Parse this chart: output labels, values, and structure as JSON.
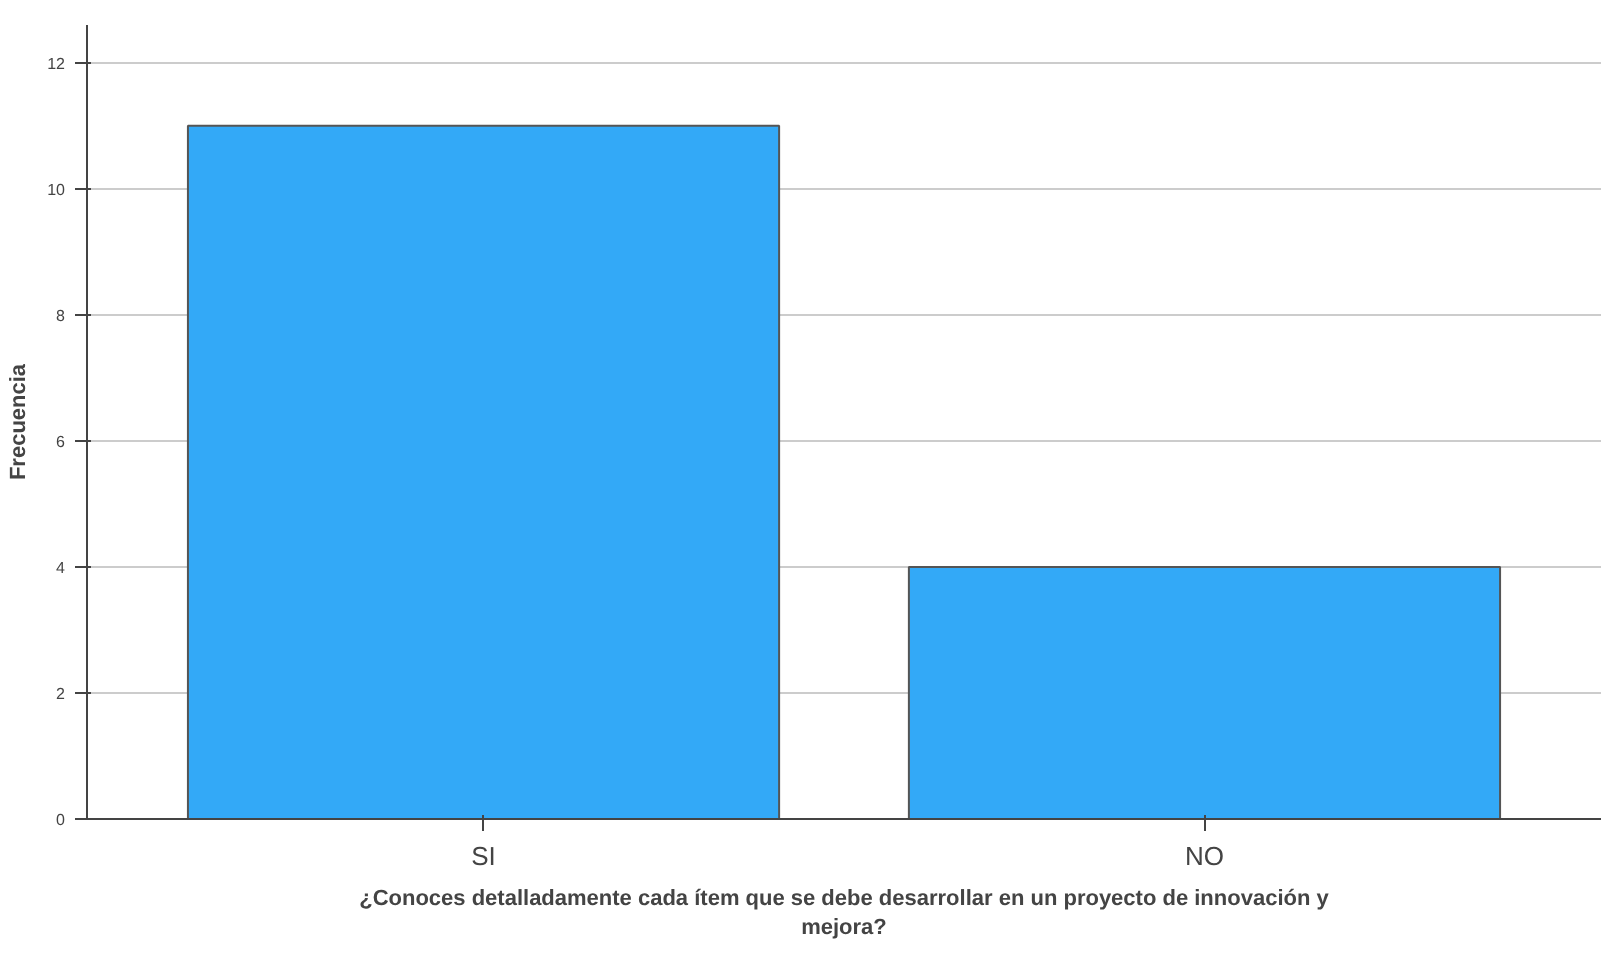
{
  "chart_data": {
    "type": "bar",
    "categories": [
      "SI",
      "NO"
    ],
    "values": [
      11,
      4
    ],
    "color": "#33a9f7",
    "xlabel": "¿Conoces detalladamente cada ítem que se debe desarrollar en un proyecto de innovación y mejora?",
    "ylabel": "Frecuencia",
    "ylim": [
      0,
      12.6
    ],
    "yticks": [
      0,
      2,
      4,
      6,
      8,
      10,
      12
    ],
    "grid": "y"
  }
}
